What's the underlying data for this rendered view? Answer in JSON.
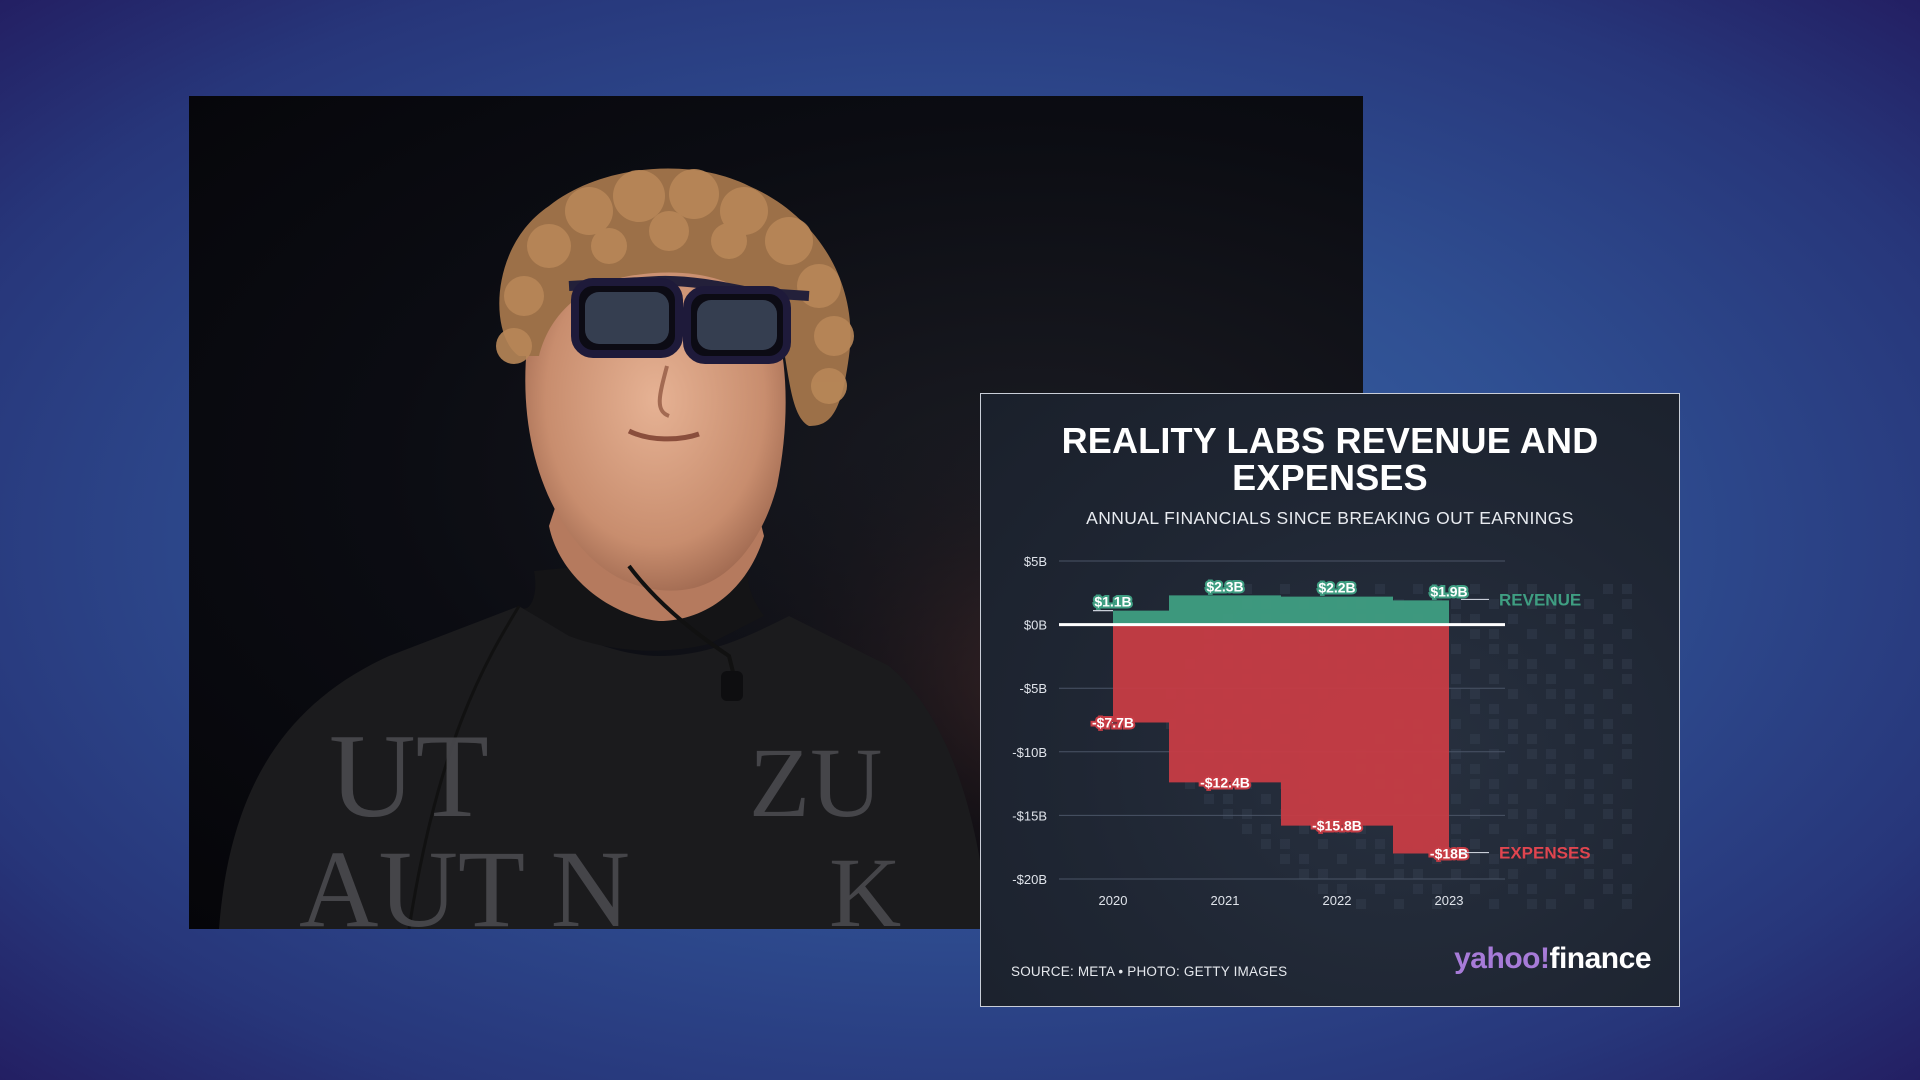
{
  "photo": {
    "shirt_text": [
      "UT",
      "ZU",
      "AUT N",
      "K"
    ]
  },
  "chart_data": {
    "type": "bar",
    "title": "REALITY LABS REVENUE AND EXPENSES",
    "subtitle": "ANNUAL FINANCIALS SINCE BREAKING OUT EARNINGS",
    "categories": [
      "2020",
      "2021",
      "2022",
      "2023"
    ],
    "series": [
      {
        "name": "REVENUE",
        "values": [
          1.1,
          2.3,
          2.2,
          1.9
        ],
        "labels": [
          "$1.1B",
          "$2.3B",
          "$2.2B",
          "$1.9B"
        ],
        "color": "#3f9e82",
        "label_color": "#3f9e82"
      },
      {
        "name": "EXPENSES",
        "values": [
          -7.7,
          -12.4,
          -15.8,
          -18
        ],
        "labels": [
          "-$7.7B",
          "-$12.4B",
          "-$15.8B",
          "-$18B"
        ],
        "color": "#c73c45",
        "label_color": "#e0454f"
      }
    ],
    "yticks": [
      5,
      0,
      -5,
      -10,
      -15,
      -20
    ],
    "ytick_labels": [
      "$5B",
      "$0B",
      "-$5B",
      "-$10B",
      "-$15B",
      "-$20B"
    ],
    "ylim": [
      -20,
      5
    ],
    "grid": true,
    "legend": "right"
  },
  "source_note": "SOURCE: META • PHOTO: GETTY IMAGES",
  "logo": {
    "brand": "yahoo!",
    "product": "finance"
  }
}
